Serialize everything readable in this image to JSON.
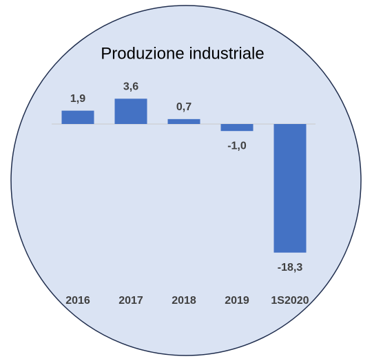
{
  "chart_data": {
    "type": "bar",
    "title": "Produzione industriale",
    "categories": [
      "2016",
      "2017",
      "2018",
      "2019",
      "1S2020"
    ],
    "values": [
      1.9,
      3.6,
      0.7,
      -1.0,
      -18.3
    ],
    "value_labels": [
      "1,9",
      "3,6",
      "0,7",
      "-1,0",
      "-18,3"
    ],
    "color": "#4472c4"
  }
}
